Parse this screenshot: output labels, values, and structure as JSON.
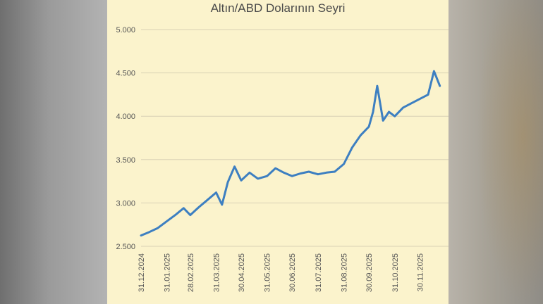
{
  "colors": {
    "panel_bg": "#fbf3cc",
    "line": "#3d7fc1",
    "grid": "#d9d2b5"
  },
  "chart_data": {
    "type": "line",
    "title": "Altın/ABD Dolarının Seyri",
    "xlabel": "",
    "ylabel": "",
    "ylim": [
      2500,
      5000
    ],
    "yticks": [
      "2.500",
      "3.000",
      "3.500",
      "4.000",
      "4.500",
      "5.000"
    ],
    "xticks": [
      "31.12.2024",
      "31.01.2025",
      "28.02.2025",
      "31.03.2025",
      "30.04.2025",
      "31.05.2025",
      "30.06.2025",
      "31.07.2025",
      "31.08.2025",
      "30.09.2025",
      "31.10.2025",
      "30.11.2025"
    ],
    "grid": true,
    "legend": "none",
    "series": [
      {
        "x": [
          "31.12.2024",
          "10.01.2025",
          "20.01.2025",
          "31.01.2025",
          "10.02.2025",
          "20.02.2025",
          "28.02.2025",
          "10.03.2025",
          "20.03.2025",
          "31.03.2025",
          "07.04.2025",
          "14.04.2025",
          "22.04.2025",
          "30.04.2025",
          "10.05.2025",
          "20.05.2025",
          "31.05.2025",
          "10.06.2025",
          "20.06.2025",
          "30.06.2025",
          "10.07.2025",
          "20.07.2025",
          "31.07.2025",
          "10.08.2025",
          "20.08.2025",
          "31.08.2025",
          "10.09.2025",
          "20.09.2025",
          "30.09.2025",
          "05.10.2025",
          "10.10.2025",
          "17.10.2025",
          "24.10.2025",
          "31.10.2025",
          "10.11.2025",
          "20.11.2025",
          "30.11.2025",
          "10.12.2025",
          "17.12.2025",
          "24.12.2025"
        ],
        "y": [
          2625,
          2665,
          2710,
          2790,
          2860,
          2940,
          2860,
          2950,
          3030,
          3120,
          2980,
          3240,
          3420,
          3260,
          3350,
          3280,
          3310,
          3400,
          3350,
          3310,
          3340,
          3360,
          3330,
          3350,
          3360,
          3450,
          3640,
          3780,
          3880,
          4050,
          4350,
          3950,
          4050,
          4000,
          4100,
          4150,
          4200,
          4250,
          4520,
          4350
        ]
      }
    ]
  }
}
